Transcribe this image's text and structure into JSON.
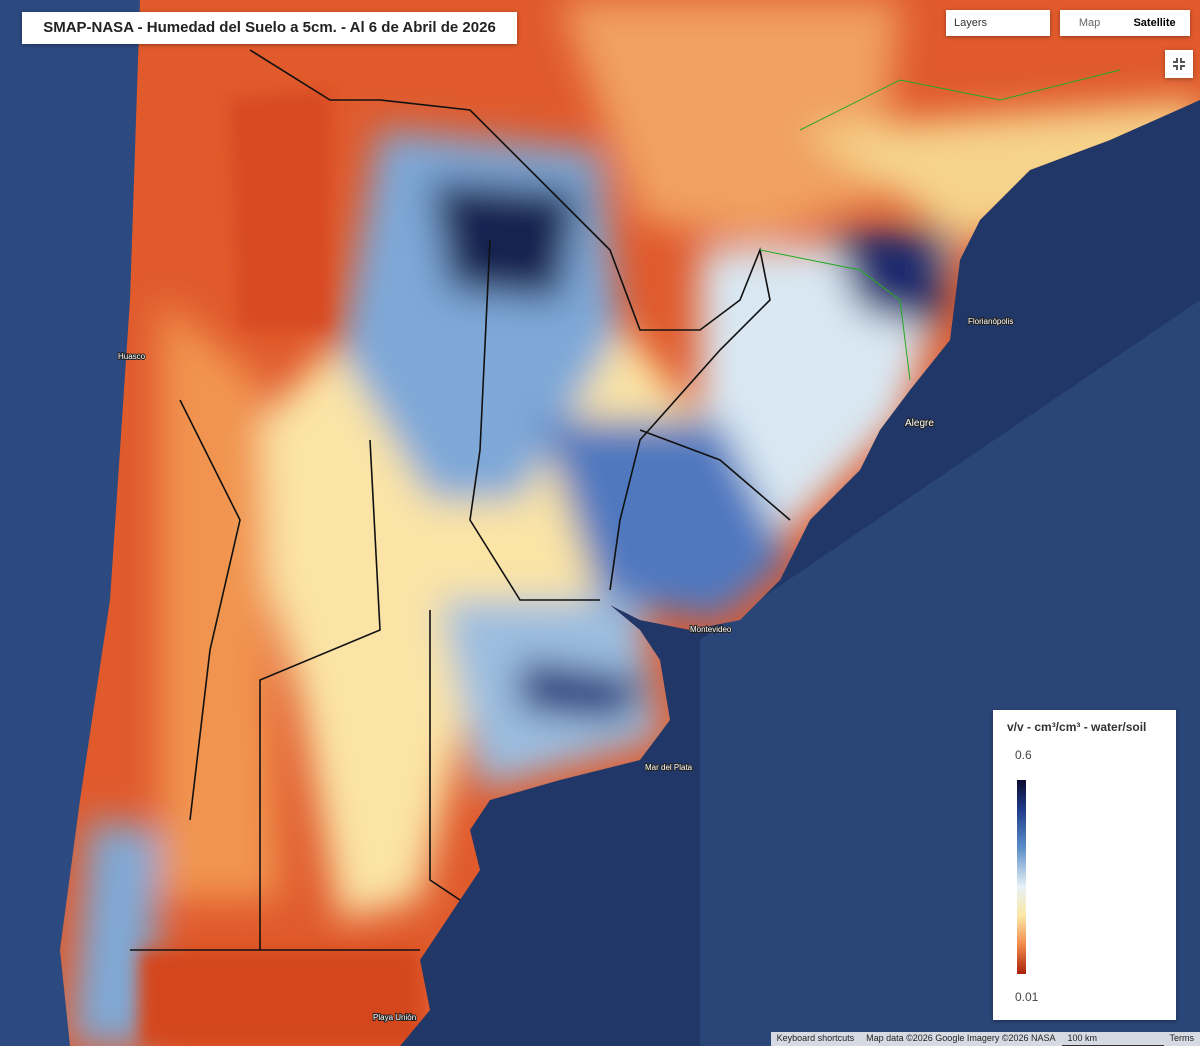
{
  "title": "SMAP-NASA - Humedad del Suelo a 5cm. - Al 6 de Abril de 2026",
  "controls": {
    "layers": "Layers",
    "map": "Map",
    "satellite": "Satellite"
  },
  "legend": {
    "title": "v/v - cm³/cm³ - water/soil",
    "max": "0.6",
    "min": "0.01"
  },
  "places": [
    "Huasco",
    "Florianópolis",
    "Alegre",
    "Mar del Plata",
    "Montevideo",
    "Playa Unión"
  ],
  "footer": {
    "shortcuts": "Keyboard shortcuts",
    "attribution": "Map data ©2026 Google Imagery ©2026 NASA",
    "scale": "100 km",
    "terms": "Terms"
  }
}
